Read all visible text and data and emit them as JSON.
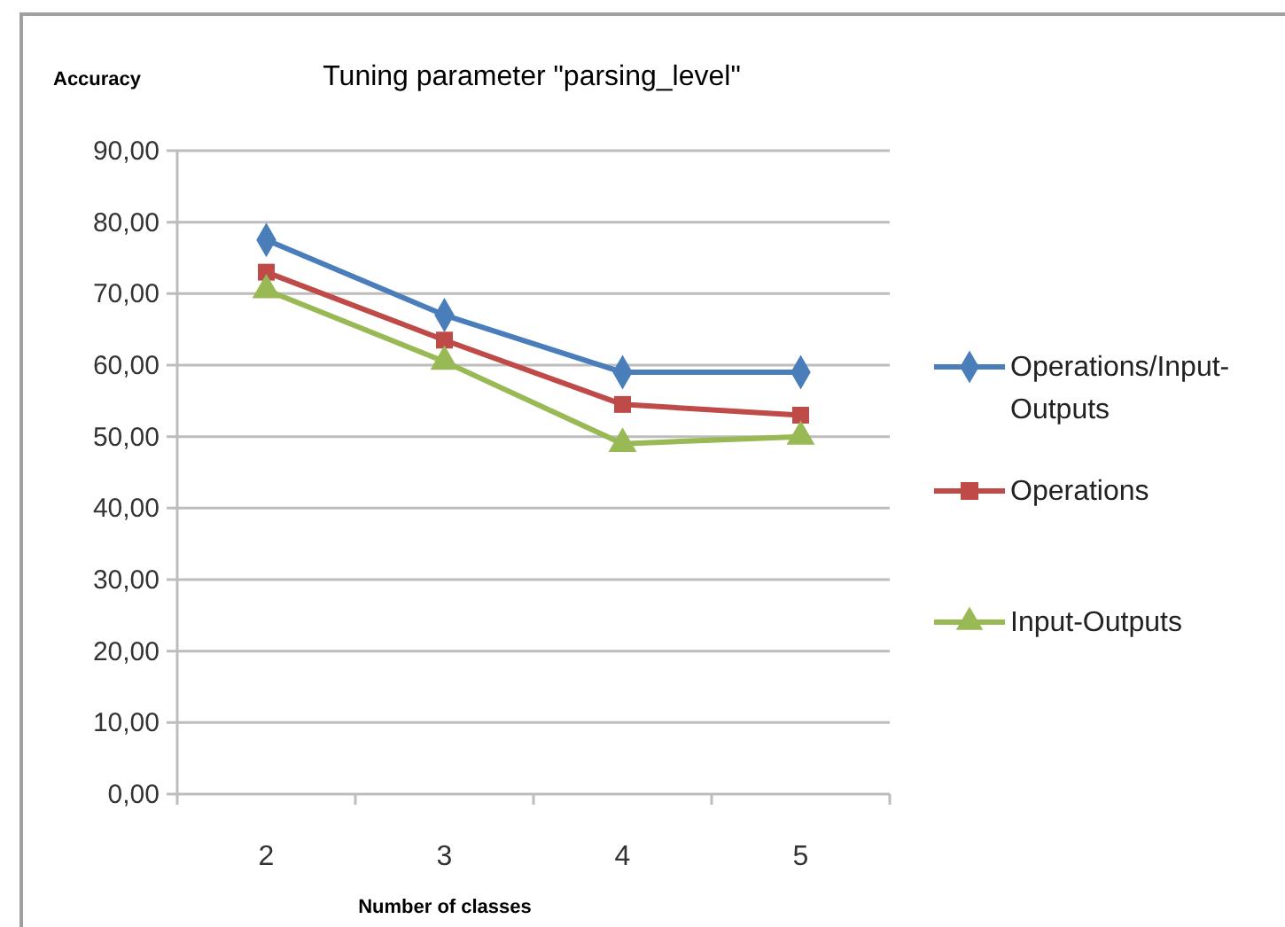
{
  "chart_data": {
    "type": "line",
    "title": "Tuning parameter \"parsing_level\"",
    "xlabel": "Number of classes",
    "ylabel": "Accuracy",
    "categories": [
      "2",
      "3",
      "4",
      "5"
    ],
    "series": [
      {
        "name": "Operations/Input-Outputs",
        "color": "#4a7ebb",
        "marker": "diamond",
        "values": [
          77.5,
          67,
          59,
          59
        ]
      },
      {
        "name": "Operations",
        "color": "#be4b48",
        "marker": "square",
        "values": [
          73,
          63.5,
          54.5,
          53
        ]
      },
      {
        "name": "Input-Outputs",
        "color": "#98b954",
        "marker": "triangle",
        "values": [
          70.5,
          60.5,
          49,
          50
        ]
      }
    ],
    "ylim": [
      0,
      90
    ],
    "yticks": [
      {
        "value": 0,
        "label": "0,00"
      },
      {
        "value": 10,
        "label": "10,00"
      },
      {
        "value": 20,
        "label": "20,00"
      },
      {
        "value": 30,
        "label": "30,00"
      },
      {
        "value": 40,
        "label": "40,00"
      },
      {
        "value": 50,
        "label": "50,00"
      },
      {
        "value": 60,
        "label": "60,00"
      },
      {
        "value": 70,
        "label": "70,00"
      },
      {
        "value": 80,
        "label": "80,00"
      },
      {
        "value": 90,
        "label": "90,00"
      }
    ],
    "grid": "y",
    "legend": "right",
    "line_style": "solid"
  }
}
